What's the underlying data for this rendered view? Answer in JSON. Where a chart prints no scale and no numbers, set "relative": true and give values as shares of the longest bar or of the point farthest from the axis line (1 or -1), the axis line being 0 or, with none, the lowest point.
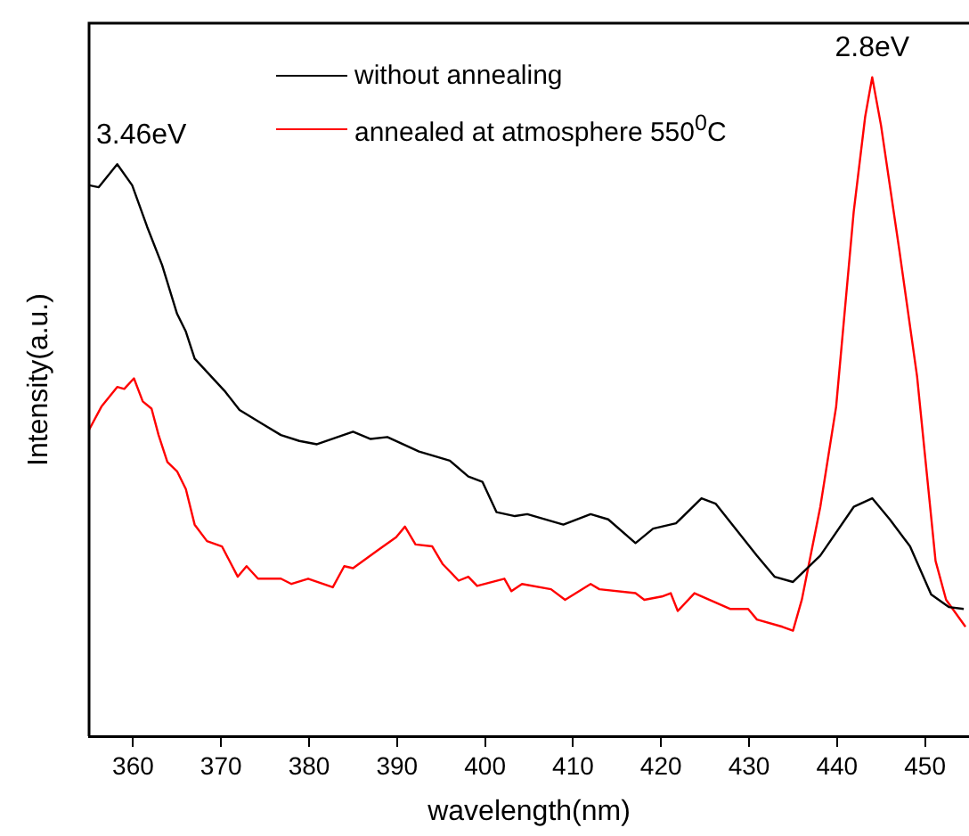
{
  "chart_data": {
    "type": "line",
    "xlabel": "wavelength(nm)",
    "ylabel": "Intensity(a.u.)",
    "relative": true,
    "xlim": [
      355,
      455
    ],
    "xticks": [
      360,
      370,
      380,
      390,
      400,
      410,
      420,
      430,
      440,
      450
    ],
    "legend": "top",
    "grid": false,
    "marker": "none",
    "line_style": "solid",
    "annotations": [
      {
        "text": "3.46eV",
        "x": 358.2,
        "y": 0.868
      },
      {
        "text": "2.8eV",
        "x": 444.0,
        "y": 1
      }
    ],
    "series": [
      {
        "name": "without annealing",
        "color": "#000000",
        "x": [
          355.0,
          356.1,
          358.2,
          359.9,
          361.6,
          363.3,
          365.0,
          366.0,
          367.0,
          370.4,
          372.1,
          374.8,
          376.8,
          378.9,
          380.9,
          385.0,
          387.0,
          388.9,
          392.5,
          396.0,
          398.1,
          399.7,
          401.3,
          403.4,
          404.8,
          408.9,
          412.0,
          414.0,
          417.1,
          419.1,
          421.7,
          424.6,
          426.2,
          430.9,
          432.9,
          435.0,
          438.1,
          441.9,
          444.0,
          446.0,
          448.3,
          450.7,
          452.7,
          454.4
        ],
        "values": [
          0.836,
          0.833,
          0.868,
          0.836,
          0.773,
          0.715,
          0.641,
          0.614,
          0.573,
          0.524,
          0.495,
          0.473,
          0.457,
          0.448,
          0.443,
          0.462,
          0.451,
          0.454,
          0.432,
          0.418,
          0.394,
          0.386,
          0.34,
          0.334,
          0.337,
          0.321,
          0.337,
          0.329,
          0.293,
          0.315,
          0.323,
          0.361,
          0.353,
          0.274,
          0.242,
          0.234,
          0.274,
          0.348,
          0.361,
          0.329,
          0.288,
          0.215,
          0.196,
          0.193
        ]
      },
      {
        "name": "annealed at atmosphere 550$^{0}$C",
        "color": "#ff0000",
        "x": [
          355.0,
          356.4,
          358.2,
          359.0,
          360.1,
          361.1,
          362.1,
          362.9,
          363.9,
          365.0,
          366.0,
          367.0,
          368.4,
          370.1,
          371.9,
          372.9,
          374.2,
          376.8,
          378.0,
          379.9,
          382.7,
          384.0,
          385.0,
          387.9,
          389.9,
          390.9,
          392.1,
          394.0,
          395.2,
          397.0,
          398.1,
          399.1,
          402.2,
          403.0,
          404.2,
          407.5,
          409.1,
          412.0,
          413.0,
          417.1,
          418.1,
          420.1,
          421.1,
          421.9,
          423.8,
          427.9,
          429.9,
          430.9,
          433.8,
          435.0,
          436.0,
          438.1,
          439.9,
          441.9,
          443.2,
          444.0,
          445.0,
          447.1,
          449.1,
          451.2,
          452.4,
          454.6
        ],
        "values": [
          0.465,
          0.5,
          0.53,
          0.527,
          0.543,
          0.508,
          0.497,
          0.457,
          0.416,
          0.402,
          0.375,
          0.321,
          0.296,
          0.288,
          0.242,
          0.258,
          0.239,
          0.239,
          0.231,
          0.239,
          0.226,
          0.258,
          0.255,
          0.283,
          0.302,
          0.318,
          0.291,
          0.288,
          0.261,
          0.236,
          0.242,
          0.228,
          0.239,
          0.22,
          0.231,
          0.223,
          0.207,
          0.231,
          0.223,
          0.217,
          0.207,
          0.212,
          0.217,
          0.19,
          0.217,
          0.193,
          0.193,
          0.177,
          0.166,
          0.16,
          0.207,
          0.348,
          0.5,
          0.796,
          0.94,
          1,
          0.927,
          0.736,
          0.546,
          0.266,
          0.207,
          0.166
        ]
      }
    ]
  }
}
